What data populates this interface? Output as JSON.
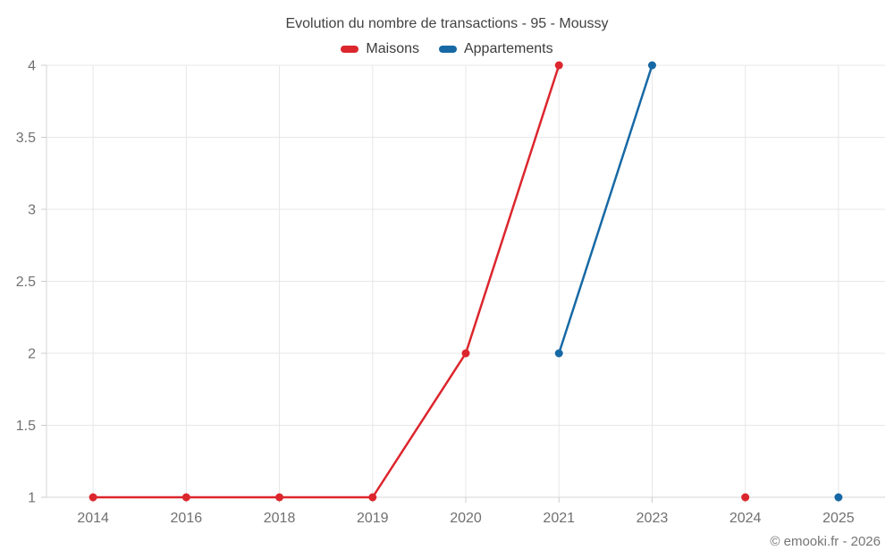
{
  "title": "Evolution du nombre de transactions - 95 - Moussy",
  "footer": "© emooki.fr - 2026",
  "colors": {
    "maisons": "#dc262d",
    "appartements": "#1769a5",
    "grid": "#e7e7e7",
    "axis_line": "#d6d6d6",
    "tick": "#cccccc",
    "axis_text": "#707070",
    "title_text": "#424242"
  },
  "chart_data": {
    "type": "line",
    "title": "Evolution du nombre de transactions - 95 - Moussy",
    "categories": [
      "2014",
      "2016",
      "2018",
      "2019",
      "2020",
      "2021",
      "2023",
      "2024",
      "2025"
    ],
    "series": [
      {
        "name": "Maisons",
        "color": "#dc262d",
        "values": [
          1,
          1,
          1,
          1,
          2,
          4,
          null,
          1,
          null
        ]
      },
      {
        "name": "Appartements",
        "color": "#1769a5",
        "values": [
          null,
          null,
          null,
          null,
          null,
          2,
          4,
          null,
          1
        ]
      }
    ],
    "xlabel": "",
    "ylabel": "",
    "ylim": [
      1,
      4
    ],
    "yticks": [
      1,
      1.5,
      2,
      2.5,
      3,
      3.5,
      4
    ],
    "grid": true,
    "legend_position": "top"
  }
}
